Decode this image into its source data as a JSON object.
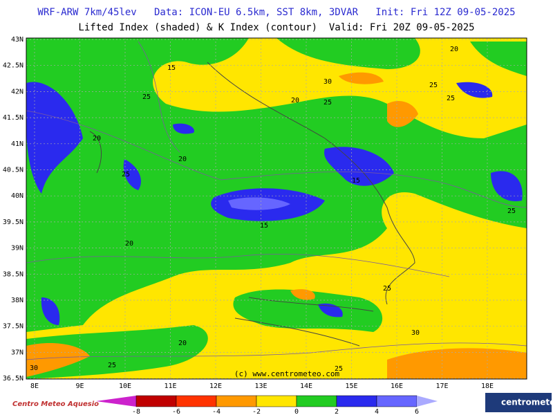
{
  "header": {
    "title": "WRF-ARW 7km/45lev   Data: ICON-EU 6.5km, SST 8km, 3DVAR   Init: Fri 12Z 09-05-2025",
    "subtitle": "Lifted Index (shaded) & K Index (contour)  Valid: Fri 20Z 09-05-2025"
  },
  "map": {
    "lat_labels": [
      "43N",
      "42.5N",
      "42N",
      "41.5N",
      "41N",
      "40.5N",
      "40N",
      "39.5N",
      "39N",
      "38.5N",
      "38N",
      "37.5N",
      "37N",
      "36.5N"
    ],
    "lon_labels": [
      "8E",
      "9E",
      "10E",
      "11E",
      "12E",
      "13E",
      "14E",
      "15E",
      "16E",
      "17E",
      "18E"
    ],
    "contour_labels": [
      "15",
      "25",
      "20",
      "20",
      "25",
      "15",
      "20",
      "15",
      "30",
      "20",
      "25",
      "25",
      "25",
      "20",
      "25",
      "25",
      "30",
      "20",
      "25",
      "30",
      "25"
    ],
    "watermark": "(c) www.centrometeo.com"
  },
  "colorbar": {
    "ticks": [
      "-8",
      "-6",
      "-4",
      "-2",
      "0",
      "2",
      "4",
      "6"
    ]
  },
  "footer": {
    "left_logo": "Centro Meteo Aquesio",
    "right_logo": "centrometeo"
  }
}
